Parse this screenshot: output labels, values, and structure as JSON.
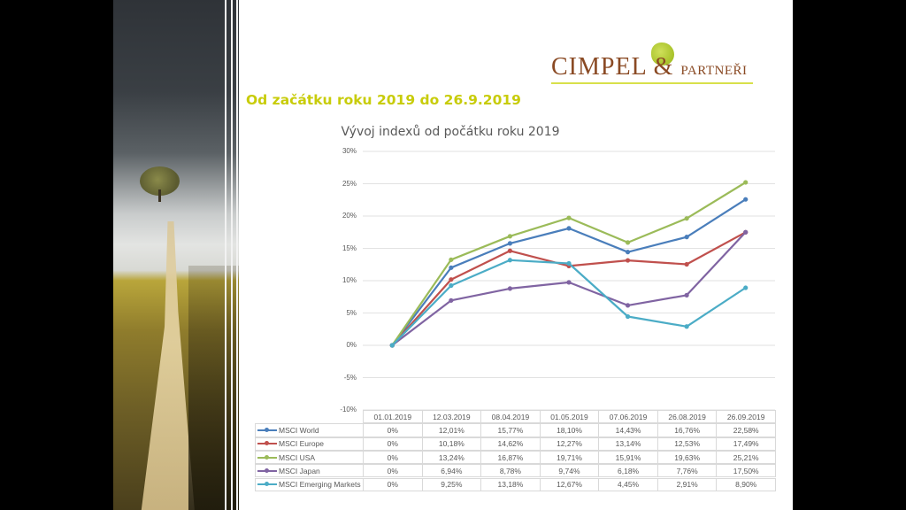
{
  "logo": {
    "brand_main": "CIMPEL",
    "brand_amp": "&",
    "brand_secondary": "PARTNEŘI",
    "icon": "tree-leaf-icon"
  },
  "headline": "Od začátku roku 2019 do 26.9.2019",
  "colors": {
    "headline": "#c8cc0a",
    "logo_text": "#8a4a24",
    "logo_rule": "#d8e04a",
    "msci_world": "#4a7ebb",
    "msci_europe": "#c0504d",
    "msci_usa": "#9bbb59",
    "msci_japan": "#8064a2",
    "msci_em": "#4bacc6"
  },
  "chart_data": {
    "type": "line",
    "title": "Vývoj indexů od počátku roku 2019",
    "xlabel": "",
    "ylabel": "",
    "ylim": [
      -10,
      30
    ],
    "yticks": [
      30,
      25,
      20,
      15,
      10,
      5,
      0,
      -5,
      -10
    ],
    "ytick_labels": [
      "30%",
      "25%",
      "20%",
      "15%",
      "10%",
      "5%",
      "0%",
      "-5%",
      "-10%"
    ],
    "grid": true,
    "legend": "data-table-below",
    "categories": [
      "01.01.2019",
      "12.03.2019",
      "08.04.2019",
      "01.05.2019",
      "07.06.2019",
      "26.08.2019",
      "26.09.2019"
    ],
    "series": [
      {
        "name": "MSCI World",
        "color": "#4a7ebb",
        "values": [
          0,
          12.01,
          15.77,
          18.1,
          14.43,
          16.76,
          22.58
        ],
        "labels": [
          "0%",
          "12,01%",
          "15,77%",
          "18,10%",
          "14,43%",
          "16,76%",
          "22,58%"
        ]
      },
      {
        "name": "MSCI Europe",
        "color": "#c0504d",
        "values": [
          0,
          10.18,
          14.62,
          12.27,
          13.14,
          12.53,
          17.49
        ],
        "labels": [
          "0%",
          "10,18%",
          "14,62%",
          "12,27%",
          "13,14%",
          "12,53%",
          "17,49%"
        ]
      },
      {
        "name": "MSCI USA",
        "color": "#9bbb59",
        "values": [
          0,
          13.24,
          16.87,
          19.71,
          15.91,
          19.63,
          25.21
        ],
        "labels": [
          "0%",
          "13,24%",
          "16,87%",
          "19,71%",
          "15,91%",
          "19,63%",
          "25,21%"
        ]
      },
      {
        "name": "MSCI Japan",
        "color": "#8064a2",
        "values": [
          0,
          6.94,
          8.78,
          9.74,
          6.18,
          7.76,
          17.5
        ],
        "labels": [
          "0%",
          "6,94%",
          "8,78%",
          "9,74%",
          "6,18%",
          "7,76%",
          "17,50%"
        ]
      },
      {
        "name": "MSCI Emerging Markets",
        "color": "#4bacc6",
        "values": [
          0,
          9.25,
          13.18,
          12.67,
          4.45,
          2.91,
          8.9
        ],
        "labels": [
          "0%",
          "9,25%",
          "13,18%",
          "12,67%",
          "4,45%",
          "2,91%",
          "8,90%"
        ]
      }
    ]
  }
}
